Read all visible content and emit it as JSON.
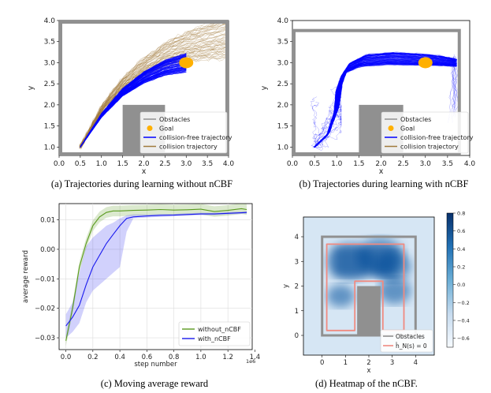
{
  "panels": [
    {
      "id": "a",
      "caption": "(a) Trajectories during learning without nCBF",
      "xticks": [
        "0.0",
        "0.5",
        "1.0",
        "1.5",
        "2.0",
        "2.5",
        "3.0",
        "3.5",
        "4.0"
      ],
      "yticks": [
        "1.0",
        "1.5",
        "2.0",
        "2.5",
        "3.0",
        "3.5",
        "4.0"
      ],
      "xlabel": "x",
      "ylabel": "y",
      "legend": [
        "Obstacles",
        "Goal",
        "collision-free trajectory",
        "collision trajectory"
      ]
    },
    {
      "id": "b",
      "caption": "(b) Trajectories during learning with nCBF",
      "xticks": [
        "0.0",
        "0.5",
        "1.0",
        "1.5",
        "2.0",
        "2.5",
        "3.0",
        "3.5",
        "4.0"
      ],
      "yticks": [
        "1.0",
        "1.5",
        "2.0",
        "2.5",
        "3.0",
        "3.5",
        "4.0"
      ],
      "xlabel": "x",
      "ylabel": "y",
      "legend": [
        "Obstacles",
        "Goal",
        "collision-free trajectory",
        "collision trajectory"
      ]
    },
    {
      "id": "c",
      "caption": "(c) Moving average reward",
      "xticks": [
        "0.0",
        "0.2",
        "0.4",
        "0.6",
        "0.8",
        "1.0",
        "1.2",
        "1.4"
      ],
      "yticks": [
        "0.01",
        "0.00",
        "−0.01",
        "−0.02",
        "−0.03"
      ],
      "xlabel": "step number",
      "ylabel": "average reward",
      "offset_label": "1e6",
      "legend": [
        "without_nCBF",
        "with_nCBF"
      ]
    },
    {
      "id": "d",
      "caption": "(d) Heatmap of the nCBF.",
      "xticks": [
        "0",
        "1",
        "2",
        "3",
        "4"
      ],
      "yticks": [
        "4",
        "3",
        "2",
        "1",
        "0"
      ],
      "xlabel": "x",
      "ylabel": "y",
      "legend": [
        "Obstacles",
        "ĥ_N(s) = 0"
      ],
      "colorbar_ticks": [
        "0.8",
        "0.6",
        "0.4",
        "0.2",
        "0.0",
        "−0.2",
        "−0.4",
        "−0.6"
      ]
    }
  ],
  "colors": {
    "obstacle": "#909090",
    "goal": "#ffb000",
    "collision_free": "#0000ff",
    "collision": "#a07a3c",
    "without_ncbf": "#5a9a1e",
    "with_ncbf": "#1a1aee",
    "zero_level": "#f08a80"
  },
  "chart_data": [
    {
      "type": "line",
      "panel": "a",
      "xlim": [
        0.0,
        4.0
      ],
      "ylim": [
        0.8,
        4.0
      ],
      "obstacles": [
        {
          "x0": 0.0,
          "x1": 4.0,
          "y0": 0.8,
          "y1": 4.0,
          "kind": "boundary"
        },
        {
          "x0": 1.5,
          "x1": 2.5,
          "y0": 0.8,
          "y1": 2.0,
          "kind": "block"
        }
      ],
      "goal": [
        3.0,
        3.0
      ],
      "start": [
        0.5,
        1.0
      ],
      "series": [
        {
          "name": "collision-free trajectory",
          "x": [
            0.5,
            1.0,
            1.5,
            2.0,
            2.5,
            3.0
          ],
          "y": [
            1.0,
            1.75,
            2.3,
            2.65,
            2.88,
            3.0
          ]
        },
        {
          "name": "collision trajectory",
          "x": [
            0.5,
            1.0,
            1.5,
            2.0,
            2.5,
            3.0,
            3.5,
            4.0
          ],
          "y": [
            1.0,
            1.9,
            2.5,
            2.9,
            3.2,
            3.38,
            3.5,
            3.6
          ]
        }
      ]
    },
    {
      "type": "line",
      "panel": "b",
      "xlim": [
        0.0,
        4.0
      ],
      "ylim": [
        0.8,
        4.0
      ],
      "obstacles": [
        {
          "x0": 0.0,
          "x1": 3.8,
          "y0": 0.8,
          "y1": 3.8,
          "kind": "boundary"
        },
        {
          "x0": 1.5,
          "x1": 2.5,
          "y0": 0.8,
          "y1": 2.0,
          "kind": "block"
        }
      ],
      "goal": [
        3.0,
        3.0
      ],
      "start": [
        0.5,
        1.0
      ],
      "series": [
        {
          "name": "collision-free trajectory",
          "x": [
            0.5,
            0.8,
            1.0,
            1.05,
            1.2,
            1.6,
            2.2,
            2.8,
            3.3,
            3.7
          ],
          "y": [
            1.0,
            1.3,
            1.9,
            2.4,
            2.85,
            3.05,
            3.1,
            3.08,
            3.05,
            3.0
          ]
        }
      ]
    },
    {
      "type": "line",
      "panel": "c",
      "xlim": [
        -0.05,
        1.38
      ],
      "ylim": [
        -0.034,
        0.0155
      ],
      "x_multiplier": "1e6",
      "series": [
        {
          "name": "without_nCBF",
          "x": [
            0.0,
            0.05,
            0.1,
            0.15,
            0.2,
            0.25,
            0.3,
            0.35,
            0.4,
            0.5,
            0.6,
            0.7,
            0.8,
            0.9,
            1.0,
            1.1,
            1.2,
            1.3,
            1.34
          ],
          "y": [
            -0.031,
            -0.02,
            -0.006,
            0.002,
            0.008,
            0.011,
            0.0125,
            0.013,
            0.013,
            0.0132,
            0.0133,
            0.0135,
            0.0133,
            0.0134,
            0.0136,
            0.0128,
            0.0132,
            0.0138,
            0.0135
          ],
          "band": 0.0018
        },
        {
          "name": "with_nCBF",
          "x": [
            0.0,
            0.05,
            0.1,
            0.15,
            0.2,
            0.25,
            0.3,
            0.35,
            0.4,
            0.45,
            0.5,
            0.6,
            0.7,
            0.8,
            0.9,
            1.0,
            1.1,
            1.2,
            1.3,
            1.34
          ],
          "y": [
            -0.026,
            -0.023,
            -0.019,
            -0.012,
            -0.006,
            -0.002,
            0.002,
            0.005,
            0.008,
            0.0105,
            0.011,
            0.0113,
            0.0115,
            0.0116,
            0.0118,
            0.012,
            0.012,
            0.0122,
            0.0124,
            0.0125
          ],
          "band_low": [
            -0.03,
            -0.028,
            -0.025,
            -0.018,
            -0.014,
            -0.012,
            -0.01,
            -0.008,
            -0.006,
            0.006,
            0.0105,
            0.0108,
            0.011,
            0.0112,
            0.0114,
            0.0116,
            0.0116,
            0.0118,
            0.012,
            0.0121
          ],
          "band_high": [
            -0.022,
            -0.018,
            -0.008,
            0.001,
            0.004,
            0.006,
            0.008,
            0.009,
            0.0105,
            0.0115,
            0.0118,
            0.0118,
            0.012,
            0.012,
            0.0122,
            0.0124,
            0.0124,
            0.0126,
            0.0128,
            0.0129
          ]
        }
      ]
    },
    {
      "type": "heatmap",
      "panel": "d",
      "xlim": [
        -0.8,
        4.8
      ],
      "ylim": [
        -0.8,
        4.8
      ],
      "colorbar_range": [
        -0.7,
        0.8
      ],
      "obstacles": [
        {
          "x0": 0.0,
          "x1": 4.0,
          "y0": 0.0,
          "y1": 4.0,
          "kind": "boundary"
        },
        {
          "x0": 1.5,
          "x1": 2.5,
          "y0": 0.0,
          "y1": 2.0,
          "kind": "block"
        }
      ],
      "zero_level_set": [
        [
          0.2,
          0.2
        ],
        [
          0.2,
          3.7
        ],
        [
          3.5,
          3.7
        ],
        [
          3.5,
          0.2
        ],
        [
          2.6,
          0.2
        ],
        [
          2.6,
          2.2
        ],
        [
          1.4,
          2.2
        ],
        [
          1.4,
          0.2
        ]
      ]
    }
  ]
}
